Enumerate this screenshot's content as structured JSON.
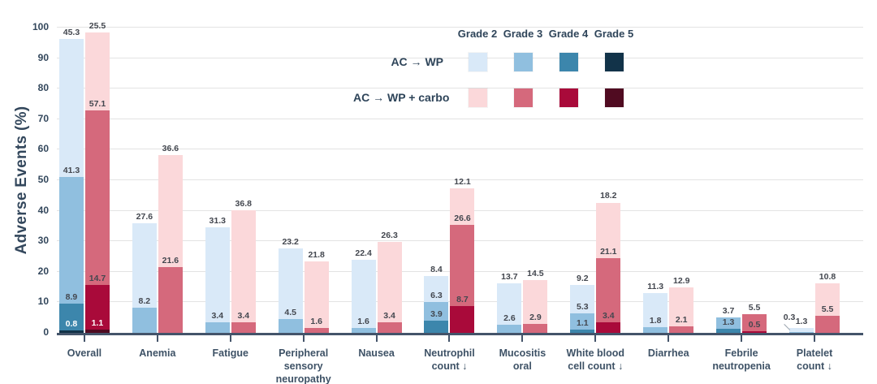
{
  "colors": {
    "wp": {
      "Grade 2": "#d9e9f8",
      "Grade 3": "#90bfdf",
      "Grade 4": "#3c86ac",
      "Grade 5": "#123349"
    },
    "wp_carbo": {
      "Grade 2": "#fbd8da",
      "Grade 3": "#d5697c",
      "Grade 4": "#a90a3a",
      "Grade 5": "#500b21"
    },
    "axis": "#44546a",
    "grid": "#e3e3e3",
    "value_label": "#43474f",
    "category_label": "#3e5266",
    "legend_text": "#2e4459"
  },
  "legend": {
    "grade_headers": [
      "Grade 2",
      "Grade 3",
      "Grade 4",
      "Grade 5"
    ],
    "arms": [
      {
        "id": "wp",
        "label": "AC → WP"
      },
      {
        "id": "wp_carbo",
        "label": "AC → WP + carbo"
      }
    ]
  },
  "chart_data": {
    "type": "bar",
    "stacked": true,
    "title": "",
    "ylabel": "Adverse Events (%)",
    "xlabel": "",
    "ylim": [
      0,
      100
    ],
    "y_ticks": [
      0,
      10,
      20,
      30,
      40,
      50,
      60,
      70,
      80,
      90,
      100
    ],
    "grid": true,
    "legend_position": "top-center",
    "stack_order_bottom_to_top": [
      "Grade 5",
      "Grade 4",
      "Grade 3",
      "Grade 2"
    ],
    "series_names": [
      "AC → WP",
      "AC → WP + carbo"
    ],
    "categories": [
      {
        "label": "Overall",
        "bars": [
          {
            "arm": "wp",
            "segments": [
              {
                "grade": "Grade 5",
                "value": 0.8,
                "label_color": "white"
              },
              {
                "grade": "Grade 4",
                "value": 8.9
              },
              {
                "grade": "Grade 3",
                "value": 41.3
              },
              {
                "grade": "Grade 2",
                "value": 45.3
              }
            ]
          },
          {
            "arm": "wp_carbo",
            "segments": [
              {
                "grade": "Grade 5",
                "value": 1.1,
                "label_color": "white"
              },
              {
                "grade": "Grade 4",
                "value": 14.7
              },
              {
                "grade": "Grade 3",
                "value": 57.1
              },
              {
                "grade": "Grade 2",
                "value": 25.5
              }
            ]
          }
        ]
      },
      {
        "label": "Anemia",
        "bars": [
          {
            "arm": "wp",
            "segments": [
              {
                "grade": "Grade 3",
                "value": 8.2
              },
              {
                "grade": "Grade 2",
                "value": 27.6
              }
            ]
          },
          {
            "arm": "wp_carbo",
            "segments": [
              {
                "grade": "Grade 3",
                "value": 21.6
              },
              {
                "grade": "Grade 2",
                "value": 36.6
              }
            ]
          }
        ]
      },
      {
        "label": "Fatigue",
        "bars": [
          {
            "arm": "wp",
            "segments": [
              {
                "grade": "Grade 3",
                "value": 3.4
              },
              {
                "grade": "Grade 2",
                "value": 31.3
              }
            ]
          },
          {
            "arm": "wp_carbo",
            "segments": [
              {
                "grade": "Grade 3",
                "value": 3.4
              },
              {
                "grade": "Grade 2",
                "value": 36.8
              }
            ]
          }
        ]
      },
      {
        "label": "Peripheral\nsensory\nneuropathy",
        "bars": [
          {
            "arm": "wp",
            "segments": [
              {
                "grade": "Grade 3",
                "value": 4.5
              },
              {
                "grade": "Grade 2",
                "value": 23.2
              }
            ]
          },
          {
            "arm": "wp_carbo",
            "segments": [
              {
                "grade": "Grade 3",
                "value": 1.6
              },
              {
                "grade": "Grade 2",
                "value": 21.8
              }
            ]
          }
        ]
      },
      {
        "label": "Nausea",
        "bars": [
          {
            "arm": "wp",
            "segments": [
              {
                "grade": "Grade 3",
                "value": 1.6
              },
              {
                "grade": "Grade 2",
                "value": 22.4
              }
            ]
          },
          {
            "arm": "wp_carbo",
            "segments": [
              {
                "grade": "Grade 3",
                "value": 3.4
              },
              {
                "grade": "Grade 2",
                "value": 26.3
              }
            ]
          }
        ]
      },
      {
        "label": "Neutrophil\ncount ↓",
        "bars": [
          {
            "arm": "wp",
            "segments": [
              {
                "grade": "Grade 4",
                "value": 3.9
              },
              {
                "grade": "Grade 3",
                "value": 6.3
              },
              {
                "grade": "Grade 2",
                "value": 8.4
              }
            ]
          },
          {
            "arm": "wp_carbo",
            "segments": [
              {
                "grade": "Grade 4",
                "value": 8.7
              },
              {
                "grade": "Grade 3",
                "value": 26.6
              },
              {
                "grade": "Grade 2",
                "value": 12.1
              }
            ]
          }
        ]
      },
      {
        "label": "Mucositis\noral",
        "bars": [
          {
            "arm": "wp",
            "segments": [
              {
                "grade": "Grade 3",
                "value": 2.6
              },
              {
                "grade": "Grade 2",
                "value": 13.7
              }
            ]
          },
          {
            "arm": "wp_carbo",
            "segments": [
              {
                "grade": "Grade 3",
                "value": 2.9
              },
              {
                "grade": "Grade 2",
                "value": 14.5
              }
            ]
          }
        ]
      },
      {
        "label": "White blood\ncell count ↓",
        "bars": [
          {
            "arm": "wp",
            "segments": [
              {
                "grade": "Grade 4",
                "value": 1.1
              },
              {
                "grade": "Grade 3",
                "value": 5.3
              },
              {
                "grade": "Grade 2",
                "value": 9.2
              }
            ]
          },
          {
            "arm": "wp_carbo",
            "segments": [
              {
                "grade": "Grade 4",
                "value": 3.4
              },
              {
                "grade": "Grade 3",
                "value": 21.1
              },
              {
                "grade": "Grade 2",
                "value": 18.2
              }
            ]
          }
        ]
      },
      {
        "label": "Diarrhea",
        "bars": [
          {
            "arm": "wp",
            "segments": [
              {
                "grade": "Grade 3",
                "value": 1.8
              },
              {
                "grade": "Grade 2",
                "value": 11.3
              }
            ]
          },
          {
            "arm": "wp_carbo",
            "segments": [
              {
                "grade": "Grade 3",
                "value": 2.1
              },
              {
                "grade": "Grade 2",
                "value": 12.9
              }
            ]
          }
        ]
      },
      {
        "label": "Febrile\nneutropenia",
        "bars": [
          {
            "arm": "wp",
            "segments": [
              {
                "grade": "Grade 4",
                "value": 1.3
              },
              {
                "grade": "Grade 3",
                "value": 3.7
              }
            ]
          },
          {
            "arm": "wp_carbo",
            "segments": [
              {
                "grade": "Grade 4",
                "value": 0.5
              },
              {
                "grade": "Grade 3",
                "value": 5.5
              }
            ]
          }
        ]
      },
      {
        "label": "Platelet\ncount ↓",
        "bars": [
          {
            "arm": "wp",
            "segments": [
              {
                "grade": "Grade 3",
                "value": 0.3,
                "callout": true
              },
              {
                "grade": "Grade 2",
                "value": 1.3
              }
            ]
          },
          {
            "arm": "wp_carbo",
            "segments": [
              {
                "grade": "Grade 3",
                "value": 5.5
              },
              {
                "grade": "Grade 2",
                "value": 10.8
              }
            ]
          }
        ]
      }
    ]
  }
}
